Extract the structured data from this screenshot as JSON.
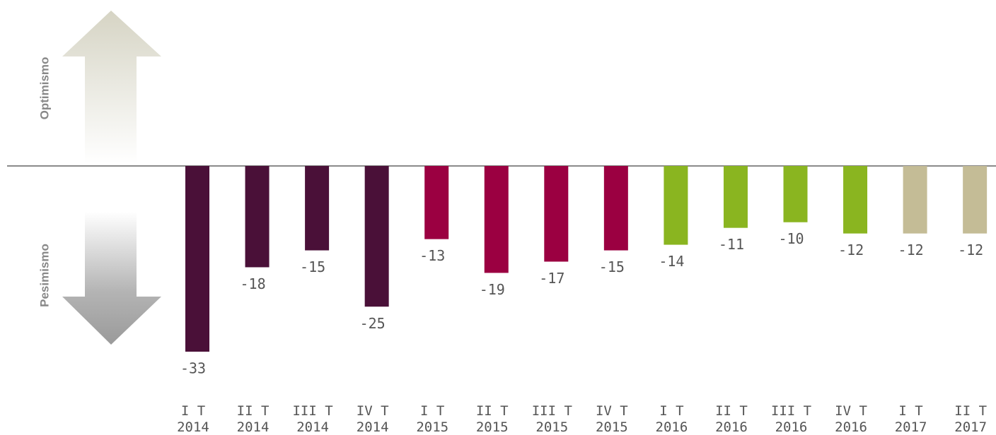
{
  "chart_data": {
    "type": "bar",
    "labels": [
      "Optimismo",
      "Pesimismo"
    ],
    "categories": [
      "I T 2014",
      "II T 2014",
      "III T 2014",
      "IV T 2014",
      "I T 2015",
      "II T 2015",
      "III T 2015",
      "IV T 2015",
      "I T 2016",
      "II T 2016",
      "III T 2016",
      "IV T 2016",
      "I T 2017",
      "II T 2017"
    ],
    "values": [
      -33,
      -18,
      -15,
      -25,
      -13,
      -19,
      -17,
      -15,
      -14,
      -11,
      -10,
      -12,
      -12,
      -12
    ],
    "colors": [
      "#4a1038",
      "#4a1038",
      "#4a1038",
      "#4a1038",
      "#9b0041",
      "#9b0041",
      "#9b0041",
      "#9b0041",
      "#8ab520",
      "#8ab520",
      "#8ab520",
      "#8ab520",
      "#c4bc96",
      "#c4bc96"
    ]
  }
}
